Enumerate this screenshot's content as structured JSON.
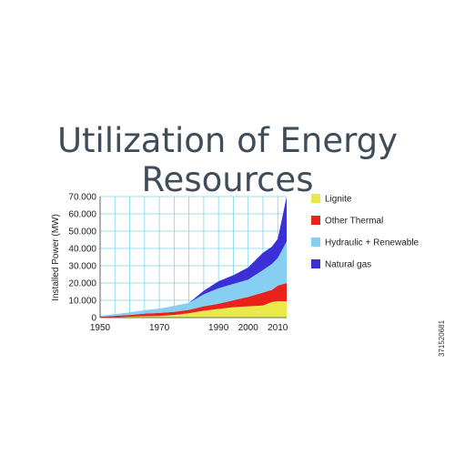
{
  "page": {
    "stock_id": "371520681"
  },
  "chart_data": {
    "type": "area",
    "title": "Utilization of Energy Resources",
    "ylabel": "Installed Power (MW)",
    "xlabel": "",
    "xlim": [
      1950,
      2013
    ],
    "ylim": [
      0,
      70000
    ],
    "x_ticks": [
      1950,
      1970,
      1990,
      2000,
      2010
    ],
    "y_ticks": [
      {
        "value": 0,
        "label": "0"
      },
      {
        "value": 10000,
        "label": "10.000"
      },
      {
        "value": 20000,
        "label": "20.000"
      },
      {
        "value": 30000,
        "label": "30.000"
      },
      {
        "value": 40000,
        "label": "40.000"
      },
      {
        "value": 50000,
        "label": "50.000"
      },
      {
        "value": 60000,
        "label": "60.000"
      },
      {
        "value": 70000,
        "label": "70.000"
      }
    ],
    "grid": true,
    "stacked": true,
    "legend_position": "right",
    "x": [
      1950,
      1955,
      1960,
      1965,
      1970,
      1975,
      1980,
      1985,
      1990,
      1995,
      2000,
      2005,
      2008,
      2010,
      2013
    ],
    "series": [
      {
        "name": "Lignite",
        "color": "#e9e94a",
        "values": [
          0,
          200,
          500,
          800,
          1000,
          1500,
          2500,
          4000,
          5000,
          6000,
          6500,
          7000,
          9000,
          9500,
          9500
        ]
      },
      {
        "name": "Other Thermal",
        "color": "#e8231b",
        "values": [
          400,
          800,
          1000,
          1500,
          1700,
          1800,
          2000,
          2500,
          3000,
          4000,
          5500,
          7500,
          7000,
          9000,
          10500
        ]
      },
      {
        "name": "Hydraulic + Renewable",
        "color": "#86cff2",
        "values": [
          700,
          1000,
          1500,
          2000,
          2500,
          3500,
          4000,
          7000,
          9000,
          9500,
          10000,
          13000,
          15000,
          16000,
          24000
        ]
      },
      {
        "name": "Natural gas",
        "color": "#3a30d6",
        "values": [
          0,
          0,
          0,
          0,
          0,
          0,
          0,
          2000,
          4000,
          5000,
          7000,
          10000,
          10000,
          11000,
          26000
        ]
      }
    ]
  }
}
